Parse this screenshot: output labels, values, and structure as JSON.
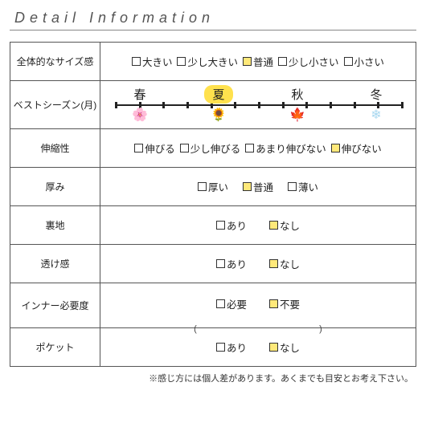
{
  "title": "Detail Information",
  "footnote": "※感じ方には個人差があります。あくまでも目安とお考え下さい。",
  "rows": {
    "size": {
      "label": "全体的なサイズ感",
      "options": [
        {
          "text": "大きい",
          "checked": false
        },
        {
          "text": "少し大きい",
          "checked": false
        },
        {
          "text": "普通",
          "checked": true
        },
        {
          "text": "少し小さい",
          "checked": false
        },
        {
          "text": "小さい",
          "checked": false
        }
      ]
    },
    "season": {
      "label": "ベストシーズン(月)",
      "items": [
        {
          "name": "春",
          "selected": false,
          "icon": "🌸",
          "icon_color": "#f39ac0"
        },
        {
          "name": "夏",
          "selected": true,
          "icon": "🌻",
          "icon_color": "#f3c400"
        },
        {
          "name": "秋",
          "selected": false,
          "icon": "🍁",
          "icon_color": "#d84a2a"
        },
        {
          "name": "冬",
          "selected": false,
          "icon": "❄",
          "icon_color": "#a9d8f0"
        }
      ],
      "axis": {
        "ticks": 12
      }
    },
    "stretch": {
      "label": "伸縮性",
      "options": [
        {
          "text": "伸びる",
          "checked": false
        },
        {
          "text": "少し伸びる",
          "checked": false
        },
        {
          "text": "あまり伸びない",
          "checked": false
        },
        {
          "text": "伸びない",
          "checked": true
        }
      ]
    },
    "thickness": {
      "label": "厚み",
      "options": [
        {
          "text": "厚い",
          "checked": false
        },
        {
          "text": "普通",
          "checked": true
        },
        {
          "text": "薄い",
          "checked": false
        }
      ]
    },
    "lining": {
      "label": "裏地",
      "options": [
        {
          "text": "あり",
          "checked": false
        },
        {
          "text": "なし",
          "checked": true
        }
      ]
    },
    "sheer": {
      "label": "透け感",
      "options": [
        {
          "text": "あり",
          "checked": false
        },
        {
          "text": "なし",
          "checked": true
        }
      ]
    },
    "inner": {
      "label": "インナー必要度",
      "options": [
        {
          "text": "必要",
          "checked": false
        },
        {
          "text": "不要",
          "checked": true
        }
      ],
      "sub": {
        "left": "(",
        "right": ")"
      }
    },
    "pocket": {
      "label": "ポケット",
      "options": [
        {
          "text": "あり",
          "checked": false
        },
        {
          "text": "なし",
          "checked": true
        }
      ]
    }
  },
  "colors": {
    "check_fill": "#ffe97a",
    "season_highlight": "#ffe14d",
    "border": "#555555",
    "title_underline": "#888888",
    "text": "#222222"
  }
}
